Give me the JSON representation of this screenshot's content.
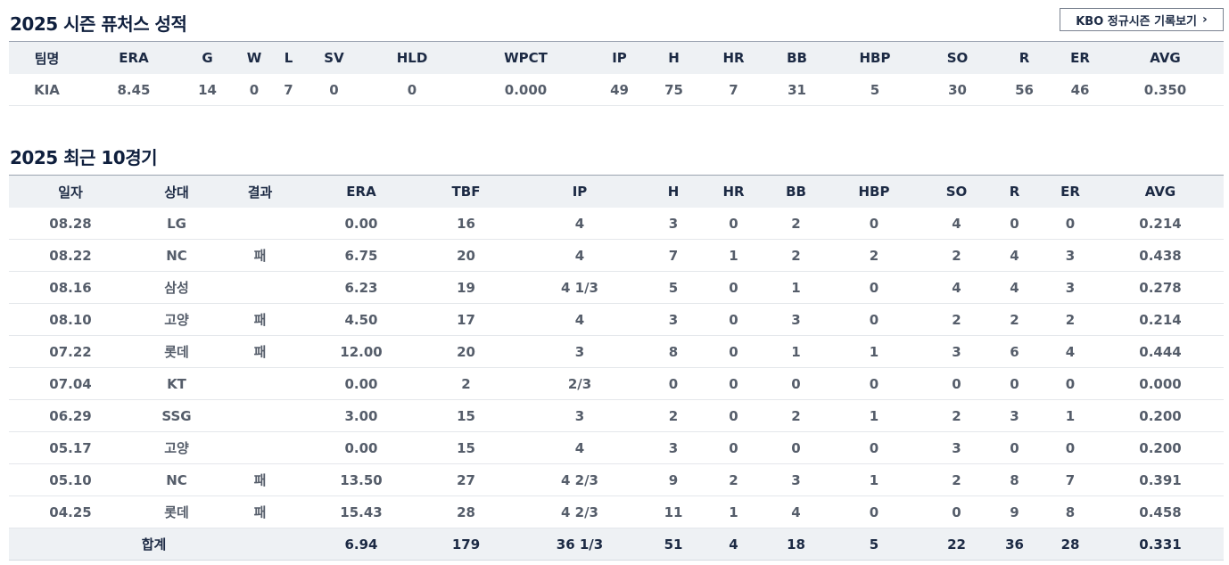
{
  "season": {
    "title": "2025 시즌 퓨처스 성적",
    "kbo_button_label": "KBO 정규시즌 기록보기",
    "headers": [
      "팀명",
      "ERA",
      "G",
      "W",
      "L",
      "SV",
      "HLD",
      "WPCT",
      "IP",
      "H",
      "HR",
      "BB",
      "HBP",
      "SO",
      "R",
      "ER",
      "AVG"
    ],
    "row": [
      "KIA",
      "8.45",
      "14",
      "0",
      "7",
      "0",
      "0",
      "0.000",
      "49",
      "75",
      "7",
      "31",
      "5",
      "30",
      "56",
      "46",
      "0.350"
    ]
  },
  "recent": {
    "title": "2025 최근 10경기",
    "headers": [
      "일자",
      "상대",
      "결과",
      "ERA",
      "TBF",
      "IP",
      "H",
      "HR",
      "BB",
      "HBP",
      "SO",
      "R",
      "ER",
      "AVG"
    ],
    "rows": [
      [
        "08.28",
        "LG",
        "",
        "0.00",
        "16",
        "4",
        "3",
        "0",
        "2",
        "0",
        "4",
        "0",
        "0",
        "0.214"
      ],
      [
        "08.22",
        "NC",
        "패",
        "6.75",
        "20",
        "4",
        "7",
        "1",
        "2",
        "2",
        "2",
        "4",
        "3",
        "0.438"
      ],
      [
        "08.16",
        "삼성",
        "",
        "6.23",
        "19",
        "4 1/3",
        "5",
        "0",
        "1",
        "0",
        "4",
        "4",
        "3",
        "0.278"
      ],
      [
        "08.10",
        "고양",
        "패",
        "4.50",
        "17",
        "4",
        "3",
        "0",
        "3",
        "0",
        "2",
        "2",
        "2",
        "0.214"
      ],
      [
        "07.22",
        "롯데",
        "패",
        "12.00",
        "20",
        "3",
        "8",
        "0",
        "1",
        "1",
        "3",
        "6",
        "4",
        "0.444"
      ],
      [
        "07.04",
        "KT",
        "",
        "0.00",
        "2",
        "2/3",
        "0",
        "0",
        "0",
        "0",
        "0",
        "0",
        "0",
        "0.000"
      ],
      [
        "06.29",
        "SSG",
        "",
        "3.00",
        "15",
        "3",
        "2",
        "0",
        "2",
        "1",
        "2",
        "3",
        "1",
        "0.200"
      ],
      [
        "05.17",
        "고양",
        "",
        "0.00",
        "15",
        "4",
        "3",
        "0",
        "0",
        "0",
        "3",
        "0",
        "0",
        "0.200"
      ],
      [
        "05.10",
        "NC",
        "패",
        "13.50",
        "27",
        "4 2/3",
        "9",
        "2",
        "3",
        "1",
        "2",
        "8",
        "7",
        "0.391"
      ],
      [
        "04.25",
        "롯데",
        "패",
        "15.43",
        "28",
        "4 2/3",
        "11",
        "1",
        "4",
        "0",
        "0",
        "9",
        "8",
        "0.458"
      ]
    ],
    "total": [
      "합계",
      "6.94",
      "179",
      "36 1/3",
      "51",
      "4",
      "18",
      "5",
      "22",
      "36",
      "28",
      "0.331"
    ]
  }
}
